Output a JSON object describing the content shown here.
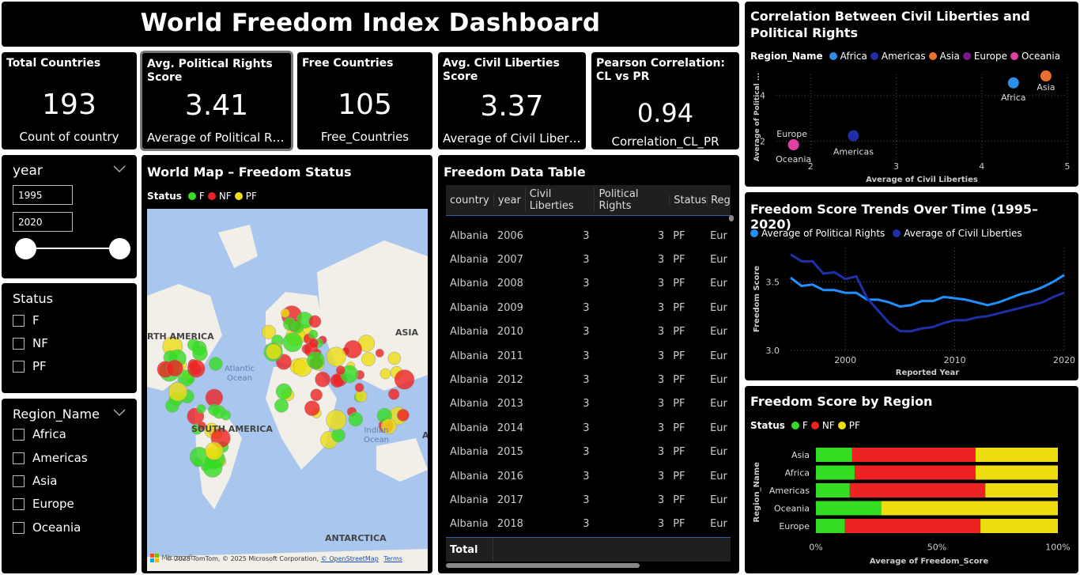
{
  "header": {
    "title": "World Freedom Index Dashboard"
  },
  "kpis": [
    {
      "title": "Total Countries",
      "value": "193",
      "sub": "Count of country"
    },
    {
      "title": "Avg. Political Rights Score",
      "value": "3.41",
      "sub": "Average of Political Rig..."
    },
    {
      "title": "Free Countries",
      "value": "105",
      "sub": "Free_Countries"
    },
    {
      "title": "Avg. Civil Liberties Score",
      "value": "3.37",
      "sub": "Average of Civil Liberties"
    },
    {
      "title": "Pearson Correlation: CL vs PR",
      "value": "0.94",
      "sub": "Correlation_CL_PR"
    }
  ],
  "year_slicer": {
    "title": "year",
    "from": "1995",
    "to": "2020"
  },
  "status_slicer": {
    "title": "Status",
    "items": [
      "F",
      "NF",
      "PF"
    ]
  },
  "region_slicer": {
    "title": "Region_Name",
    "items": [
      "Africa",
      "Americas",
      "Asia",
      "Europe",
      "Oceania"
    ]
  },
  "map": {
    "title": "World Map – Freedom Status",
    "legend_title": "Status",
    "legend": [
      {
        "label": "F",
        "color": "#33dd22"
      },
      {
        "label": "NF",
        "color": "#ee2222"
      },
      {
        "label": "PF",
        "color": "#eedd11"
      }
    ],
    "labels": {
      "north_america": "RTH AMERICA",
      "south_america": "SOUTH AMERICA",
      "asia": "ASIA",
      "atlantic": "Atlantic Ocean",
      "indian": "Indian Ocean",
      "antarctica": "ANTARCTICA",
      "africa_edge": "A"
    },
    "attribution": "© 2025 TomTom, © 2025 Microsoft Corporation,",
    "osm": "© OpenStreetMap",
    "terms": "Terms",
    "ms_logo": "Microsoft"
  },
  "table": {
    "title": "Freedom Data Table",
    "columns": [
      "country",
      "year",
      "Civil Liberties",
      "Political Rights",
      "Status",
      "Region"
    ],
    "rows": [
      [
        "Albania",
        "2006",
        "3",
        "3",
        "PF",
        "Eur"
      ],
      [
        "Albania",
        "2007",
        "3",
        "3",
        "PF",
        "Eur"
      ],
      [
        "Albania",
        "2008",
        "3",
        "3",
        "PF",
        "Eur"
      ],
      [
        "Albania",
        "2009",
        "3",
        "3",
        "PF",
        "Eur"
      ],
      [
        "Albania",
        "2010",
        "3",
        "3",
        "PF",
        "Eur"
      ],
      [
        "Albania",
        "2011",
        "3",
        "3",
        "PF",
        "Eur"
      ],
      [
        "Albania",
        "2012",
        "3",
        "3",
        "PF",
        "Eur"
      ],
      [
        "Albania",
        "2013",
        "3",
        "3",
        "PF",
        "Eur"
      ],
      [
        "Albania",
        "2014",
        "3",
        "3",
        "PF",
        "Eur"
      ],
      [
        "Albania",
        "2015",
        "3",
        "3",
        "PF",
        "Eur"
      ],
      [
        "Albania",
        "2016",
        "3",
        "3",
        "PF",
        "Eur"
      ],
      [
        "Albania",
        "2017",
        "3",
        "3",
        "PF",
        "Eur"
      ],
      [
        "Albania",
        "2018",
        "3",
        "3",
        "PF",
        "Eur"
      ]
    ],
    "total_label": "Total"
  },
  "scatter": {
    "title": "Correlation Between Civil Liberties and Political Rights",
    "legend_title": "Region_Name",
    "xlabel": "Average of Civil Liberties",
    "ylabel": "Average of Political ...",
    "colors": {
      "Africa": "#2b8fe8",
      "Americas": "#1f2fa8",
      "Asia": "#e8702b",
      "Europe": "#7a1a8a",
      "Oceania": "#e040a0"
    }
  },
  "trend": {
    "title": "Freedom Score Trends Over Time (1995–2020)",
    "xlabel": "Reported Year",
    "ylabel": "Freedom Score",
    "colors": {
      "pr": "#1e90ff",
      "cl": "#1f2fa8"
    }
  },
  "region_bar": {
    "title": "Freedom Score by Region",
    "legend_title": "Status",
    "xlabel": "Average of Freedom_Score",
    "ylabel": "Region_Name",
    "colors": {
      "F": "#33dd22",
      "NF": "#ee2222",
      "PF": "#eedd11"
    }
  },
  "chart_data": [
    {
      "type": "scatter",
      "title": "Correlation Between Civil Liberties and Political Rights",
      "xlabel": "Average of Civil Liberties",
      "ylabel": "Average of Political ...",
      "xlim": [
        1.6,
        5.0
      ],
      "ylim": [
        1.2,
        4.9
      ],
      "xticks": [
        "2",
        "3",
        "4",
        "5"
      ],
      "yticks": [
        "2",
        "4"
      ],
      "points": [
        {
          "name": "Africa",
          "x": 4.37,
          "y": 4.53
        },
        {
          "name": "Americas",
          "x": 2.5,
          "y": 2.24
        },
        {
          "name": "Asia",
          "x": 4.75,
          "y": 4.83
        },
        {
          "name": "Europe",
          "x": 1.8,
          "y": 1.85
        },
        {
          "name": "Oceania",
          "x": 1.8,
          "y": 1.85
        }
      ]
    },
    {
      "type": "line",
      "title": "Freedom Score Trends Over Time (1995–2020)",
      "xlabel": "Reported Year",
      "ylabel": "Freedom Score",
      "xlim": [
        1995,
        2020
      ],
      "ylim": [
        3.0,
        3.75
      ],
      "xticks": [
        "2000",
        "2010",
        "2020"
      ],
      "yticks": [
        "3.0",
        "3.5"
      ],
      "x": [
        1995,
        1996,
        1997,
        1998,
        1999,
        2000,
        2001,
        2002,
        2003,
        2004,
        2005,
        2006,
        2007,
        2008,
        2009,
        2010,
        2011,
        2012,
        2013,
        2014,
        2015,
        2016,
        2017,
        2018,
        2019,
        2020
      ],
      "series": [
        {
          "name": "Average of Political Rights",
          "values": [
            3.53,
            3.47,
            3.48,
            3.44,
            3.44,
            3.42,
            3.42,
            3.37,
            3.37,
            3.35,
            3.32,
            3.33,
            3.36,
            3.36,
            3.39,
            3.38,
            3.37,
            3.35,
            3.33,
            3.35,
            3.38,
            3.41,
            3.43,
            3.46,
            3.5,
            3.55
          ]
        },
        {
          "name": "Average of Civil Liberties",
          "values": [
            3.7,
            3.65,
            3.65,
            3.56,
            3.57,
            3.52,
            3.54,
            3.38,
            3.29,
            3.2,
            3.14,
            3.14,
            3.16,
            3.17,
            3.2,
            3.22,
            3.22,
            3.24,
            3.25,
            3.27,
            3.29,
            3.31,
            3.33,
            3.35,
            3.39,
            3.42
          ]
        }
      ]
    },
    {
      "type": "bar",
      "title": "Freedom Score by Region",
      "xlabel": "Average of Freedom_Score",
      "ylabel": "Region_Name",
      "stacked": "100%",
      "xticks": [
        "0%",
        "50%",
        "100%"
      ],
      "categories": [
        "Asia",
        "Africa",
        "Americas",
        "Oceania",
        "Europe"
      ],
      "series": [
        {
          "name": "F",
          "values": [
            15,
            16,
            14,
            27,
            12
          ]
        },
        {
          "name": "NF",
          "values": [
            51,
            50,
            56,
            0,
            56
          ]
        },
        {
          "name": "PF",
          "values": [
            34,
            34,
            30,
            73,
            32
          ]
        }
      ]
    }
  ]
}
